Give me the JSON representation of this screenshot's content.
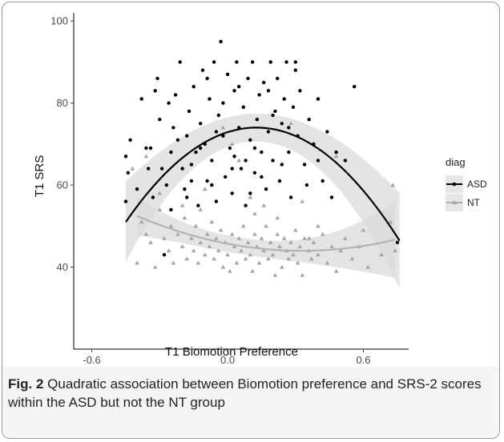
{
  "figure": {
    "label": "Fig. 2",
    "caption": "Quadratic association between Biomotion preference and SRS-2 scores within the ASD but not the NT group"
  },
  "chart_data": {
    "type": "scatter",
    "xlabel": "T1 Biomotion Preference",
    "ylabel": "T1 SRS",
    "xlim": [
      -0.68,
      0.8
    ],
    "ylim": [
      20,
      102
    ],
    "xticks": [
      -0.6,
      0.0,
      0.6
    ],
    "xtick_labels": [
      "-0.6",
      "0.0",
      "0.6"
    ],
    "yticks": [
      40,
      60,
      80,
      100
    ],
    "ytick_labels": [
      "40",
      "60",
      "80",
      "100"
    ],
    "grid": false,
    "legend": {
      "title": "diag",
      "position": "right",
      "entries": [
        "ASD",
        "NT"
      ]
    },
    "series": [
      {
        "name": "ASD",
        "marker": "circle",
        "color": "#000000",
        "fit": {
          "type": "quadratic",
          "coefficients": [
            72.9,
            17.6,
            -69.0
          ],
          "x_range": [
            -0.45,
            0.76
          ]
        },
        "points": [
          [
            -0.45,
            67
          ],
          [
            -0.45,
            56
          ],
          [
            -0.43,
            71
          ],
          [
            -0.4,
            59
          ],
          [
            -0.38,
            81
          ],
          [
            -0.36,
            69
          ],
          [
            -0.34,
            69
          ],
          [
            -0.33,
            57
          ],
          [
            -0.32,
            83
          ],
          [
            -0.31,
            86
          ],
          [
            -0.3,
            76
          ],
          [
            -0.28,
            43
          ],
          [
            -0.27,
            60
          ],
          [
            -0.26,
            80
          ],
          [
            -0.25,
            54
          ],
          [
            -0.24,
            74
          ],
          [
            -0.23,
            82
          ],
          [
            -0.22,
            71
          ],
          [
            -0.21,
            90
          ],
          [
            -0.2,
            64
          ],
          [
            -0.19,
            59
          ],
          [
            -0.18,
            72
          ],
          [
            -0.17,
            78
          ],
          [
            -0.16,
            65
          ],
          [
            -0.15,
            84
          ],
          [
            -0.14,
            68
          ],
          [
            -0.13,
            55
          ],
          [
            -0.12,
            75
          ],
          [
            -0.11,
            88
          ],
          [
            -0.1,
            70
          ],
          [
            -0.09,
            61
          ],
          [
            -0.08,
            81
          ],
          [
            -0.07,
            66
          ],
          [
            -0.06,
            90
          ],
          [
            -0.05,
            56
          ],
          [
            -0.04,
            77
          ],
          [
            -0.03,
            95
          ],
          [
            -0.02,
            72
          ],
          [
            -0.01,
            62
          ],
          [
            0.0,
            87
          ],
          [
            0.01,
            69
          ],
          [
            0.02,
            58
          ],
          [
            0.03,
            83
          ],
          [
            0.04,
            90
          ],
          [
            0.05,
            74
          ],
          [
            0.06,
            64
          ],
          [
            0.07,
            79
          ],
          [
            0.08,
            55
          ],
          [
            0.09,
            86
          ],
          [
            0.1,
            71
          ],
          [
            0.11,
            90
          ],
          [
            0.12,
            63
          ],
          [
            0.13,
            76
          ],
          [
            0.14,
            82
          ],
          [
            0.15,
            68
          ],
          [
            0.16,
            85
          ],
          [
            0.17,
            59
          ],
          [
            0.18,
            73
          ],
          [
            0.19,
            90
          ],
          [
            0.2,
            66
          ],
          [
            0.21,
            78
          ],
          [
            0.22,
            86
          ],
          [
            0.23,
            61
          ],
          [
            0.24,
            75
          ],
          [
            0.25,
            81
          ],
          [
            0.26,
            90
          ],
          [
            0.27,
            68
          ],
          [
            0.28,
            57
          ],
          [
            0.29,
            79
          ],
          [
            0.3,
            90
          ],
          [
            0.31,
            72
          ],
          [
            0.32,
            83
          ],
          [
            0.34,
            65
          ],
          [
            0.36,
            76
          ],
          [
            0.38,
            70
          ],
          [
            0.4,
            81
          ],
          [
            0.42,
            61
          ],
          [
            0.44,
            73
          ],
          [
            0.46,
            57
          ],
          [
            0.48,
            68
          ],
          [
            0.52,
            66
          ],
          [
            0.56,
            84
          ],
          [
            0.75,
            46
          ],
          [
            -0.44,
            63
          ],
          [
            -0.35,
            64
          ],
          [
            -0.29,
            64
          ],
          [
            -0.16,
            61
          ],
          [
            -0.07,
            60
          ],
          [
            0.02,
            64
          ],
          [
            0.08,
            66
          ],
          [
            0.15,
            62
          ],
          [
            0.24,
            65
          ],
          [
            0.35,
            60
          ],
          [
            0.12,
            69
          ],
          [
            -0.12,
            69
          ],
          [
            0.05,
            84
          ],
          [
            -0.02,
            80
          ],
          [
            0.2,
            77
          ],
          [
            -0.25,
            68
          ],
          [
            0.3,
            88
          ],
          [
            0.18,
            83
          ],
          [
            -0.09,
            86
          ],
          [
            0.03,
            67
          ],
          [
            0.27,
            74
          ],
          [
            -0.18,
            57
          ],
          [
            0.1,
            58
          ],
          [
            0.4,
            66
          ],
          [
            -0.05,
            73
          ]
        ]
      },
      {
        "name": "NT",
        "marker": "triangle",
        "color": "#a6a6a6",
        "fit": {
          "type": "quadratic",
          "coefficients": [
            45.7,
            -10.5,
            16.0
          ],
          "x_range": [
            -0.4,
            0.74
          ]
        },
        "points": [
          [
            -0.4,
            41
          ],
          [
            -0.38,
            51
          ],
          [
            -0.36,
            48
          ],
          [
            -0.34,
            46
          ],
          [
            -0.32,
            40
          ],
          [
            -0.3,
            54
          ],
          [
            -0.28,
            47
          ],
          [
            -0.26,
            44
          ],
          [
            -0.25,
            50
          ],
          [
            -0.24,
            41
          ],
          [
            -0.22,
            48
          ],
          [
            -0.2,
            45
          ],
          [
            -0.19,
            52
          ],
          [
            -0.18,
            42
          ],
          [
            -0.16,
            47
          ],
          [
            -0.15,
            44
          ],
          [
            -0.14,
            50
          ],
          [
            -0.13,
            41
          ],
          [
            -0.12,
            46
          ],
          [
            -0.1,
            43
          ],
          [
            -0.09,
            48
          ],
          [
            -0.08,
            45
          ],
          [
            -0.07,
            51
          ],
          [
            -0.06,
            42
          ],
          [
            -0.05,
            47
          ],
          [
            -0.04,
            44
          ],
          [
            -0.03,
            49
          ],
          [
            -0.02,
            40
          ],
          [
            -0.01,
            46
          ],
          [
            0.0,
            43
          ],
          [
            0.01,
            39
          ],
          [
            0.02,
            48
          ],
          [
            0.03,
            45
          ],
          [
            0.04,
            41
          ],
          [
            0.05,
            47
          ],
          [
            0.06,
            44
          ],
          [
            0.07,
            50
          ],
          [
            0.08,
            42
          ],
          [
            0.09,
            46
          ],
          [
            0.1,
            43
          ],
          [
            0.11,
            39
          ],
          [
            0.12,
            48
          ],
          [
            0.13,
            45
          ],
          [
            0.14,
            41
          ],
          [
            0.15,
            47
          ],
          [
            0.16,
            44
          ],
          [
            0.17,
            50
          ],
          [
            0.18,
            42
          ],
          [
            0.19,
            46
          ],
          [
            0.2,
            43
          ],
          [
            0.21,
            38
          ],
          [
            0.22,
            48
          ],
          [
            0.23,
            45
          ],
          [
            0.24,
            40
          ],
          [
            0.25,
            47
          ],
          [
            0.26,
            44
          ],
          [
            0.27,
            42
          ],
          [
            0.28,
            46
          ],
          [
            0.29,
            43
          ],
          [
            0.3,
            49
          ],
          [
            0.31,
            41
          ],
          [
            0.32,
            45
          ],
          [
            0.33,
            38
          ],
          [
            0.34,
            47
          ],
          [
            0.36,
            44
          ],
          [
            0.37,
            42
          ],
          [
            0.38,
            46
          ],
          [
            0.4,
            43
          ],
          [
            0.42,
            48
          ],
          [
            0.44,
            41
          ],
          [
            0.46,
            45
          ],
          [
            0.48,
            39
          ],
          [
            0.5,
            44
          ],
          [
            0.52,
            47
          ],
          [
            0.55,
            42
          ],
          [
            0.58,
            45
          ],
          [
            0.62,
            40
          ],
          [
            0.68,
            43
          ],
          [
            0.72,
            51
          ],
          [
            0.73,
            60
          ],
          [
            0.74,
            44
          ],
          [
            -0.36,
            67
          ],
          [
            -0.42,
            64
          ],
          [
            0.02,
            70
          ],
          [
            -0.1,
            59
          ],
          [
            0.16,
            55
          ],
          [
            0.12,
            53
          ],
          [
            0.33,
            56
          ],
          [
            0.48,
            67
          ],
          [
            -0.02,
            74
          ],
          [
            0.28,
            75
          ],
          [
            0.05,
            66
          ],
          [
            -0.3,
            58
          ],
          [
            0.22,
            52
          ],
          [
            -0.12,
            54
          ],
          [
            0.4,
            50
          ],
          [
            0.1,
            57
          ],
          [
            -0.2,
            55
          ],
          [
            0.36,
            47
          ],
          [
            0.6,
            49
          ]
        ]
      }
    ]
  }
}
